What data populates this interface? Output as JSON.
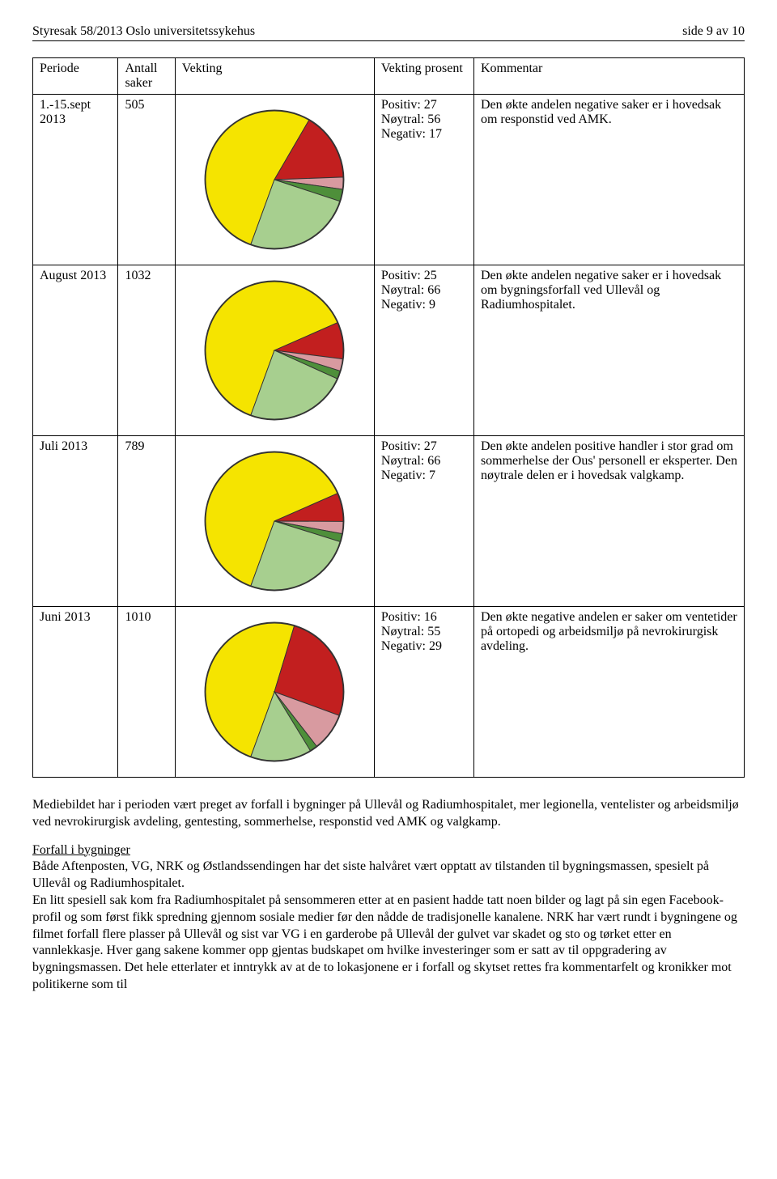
{
  "header": {
    "left": "Styresak 58/2013 Oslo universitetssykehus",
    "right": "side 9 av 10"
  },
  "table": {
    "columns": [
      "Periode",
      "Antall saker",
      "Vekting",
      "Vekting prosent",
      "Kommentar"
    ],
    "rows": [
      {
        "periode": "1.-15.sept 2013",
        "antall": "505",
        "prosent_lines": [
          "Positiv: 27",
          "Nøytral: 56",
          "Negativ: 17"
        ],
        "kommentar": "Den økte andelen negative saker er i hovedsak om responstid ved AMK.",
        "pie": {
          "positiv_pct": 27,
          "noytral_pct": 56,
          "negativ_pct": 17,
          "dark_green_pct": 3,
          "light_pink_pct": 3,
          "colors": {
            "positiv": "#a7cf8f",
            "noytral": "#f5e400",
            "negativ": "#c21f1f",
            "dark_green": "#4e8f3a",
            "light_pink": "#d89aa0",
            "outline": "#333333",
            "bg": "#ffffff"
          }
        }
      },
      {
        "periode": "August 2013",
        "antall": "1032",
        "prosent_lines": [
          "Positiv: 25",
          "Nøytral: 66",
          "Negativ: 9"
        ],
        "kommentar": "Den økte andelen negative saker er i hovedsak om bygningsforfall ved Ullevål og Radiumhospitalet.",
        "pie": {
          "positiv_pct": 25,
          "noytral_pct": 66,
          "negativ_pct": 9,
          "dark_green_pct": 2,
          "light_pink_pct": 3,
          "colors": {
            "positiv": "#a7cf8f",
            "noytral": "#f5e400",
            "negativ": "#c21f1f",
            "dark_green": "#4e8f3a",
            "light_pink": "#d89aa0",
            "outline": "#333333",
            "bg": "#ffffff"
          }
        }
      },
      {
        "periode": "Juli 2013",
        "antall": "789",
        "prosent_lines": [
          "Positiv: 27",
          "Nøytral: 66",
          "Negativ: 7"
        ],
        "kommentar": "Den økte andelen positive handler i stor grad om sommerhelse der Ous' personell er eksperter. Den nøytrale delen er i hovedsak valgkamp.",
        "pie": {
          "positiv_pct": 27,
          "noytral_pct": 66,
          "negativ_pct": 7,
          "dark_green_pct": 2,
          "light_pink_pct": 3,
          "colors": {
            "positiv": "#a7cf8f",
            "noytral": "#f5e400",
            "negativ": "#c21f1f",
            "dark_green": "#4e8f3a",
            "light_pink": "#d89aa0",
            "outline": "#333333",
            "bg": "#ffffff"
          }
        }
      },
      {
        "periode": "Juni 2013",
        "antall": "1010",
        "prosent_lines": [
          "Positiv: 16",
          "Nøytral: 55",
          "Negativ: 29"
        ],
        "kommentar": "Den økte negative andelen er saker om ventetider på ortopedi og arbeidsmiljø på nevrokirurgisk avdeling.",
        "pie": {
          "positiv_pct": 16,
          "noytral_pct": 55,
          "negativ_pct": 29,
          "dark_green_pct": 2,
          "light_pink_pct": 10,
          "colors": {
            "positiv": "#a7cf8f",
            "noytral": "#f5e400",
            "negativ": "#c21f1f",
            "dark_green": "#4e8f3a",
            "light_pink": "#d89aa0",
            "outline": "#333333",
            "bg": "#ffffff"
          }
        }
      }
    ]
  },
  "body": {
    "p1": "Mediebildet har i perioden vært preget av forfall i bygninger på Ullevål og Radiumhospitalet, mer legionella, ventelister og arbeidsmiljø ved nevrokirurgisk avdeling, gentesting, sommerhelse, responstid ved AMK og valgkamp.",
    "h1": "Forfall i bygninger",
    "p2": "Både Aftenposten, VG, NRK og Østlandssendingen har det siste halvåret vært opptatt av tilstanden til bygningsmassen, spesielt på Ullevål og Radiumhospitalet.",
    "p3": "En litt spesiell sak kom fra Radiumhospitalet på sensommeren etter at en pasient hadde tatt noen bilder og lagt på sin egen Facebook-profil og som først fikk spredning gjennom sosiale medier før den nådde de tradisjonelle kanalene.  NRK har vært rundt i bygningene og filmet forfall flere plasser på Ullevål og sist var VG i en garderobe på Ullevål der gulvet var skadet og sto og tørket etter en vannlekkasje. Hver gang sakene kommer opp gjentas budskapet om hvilke investeringer som er satt av til oppgradering av bygningsmassen. Det hele etterlater et inntrykk av at de to lokasjonene er i forfall og skytset rettes fra kommentarfelt og kronikker mot politikerne som til"
  }
}
